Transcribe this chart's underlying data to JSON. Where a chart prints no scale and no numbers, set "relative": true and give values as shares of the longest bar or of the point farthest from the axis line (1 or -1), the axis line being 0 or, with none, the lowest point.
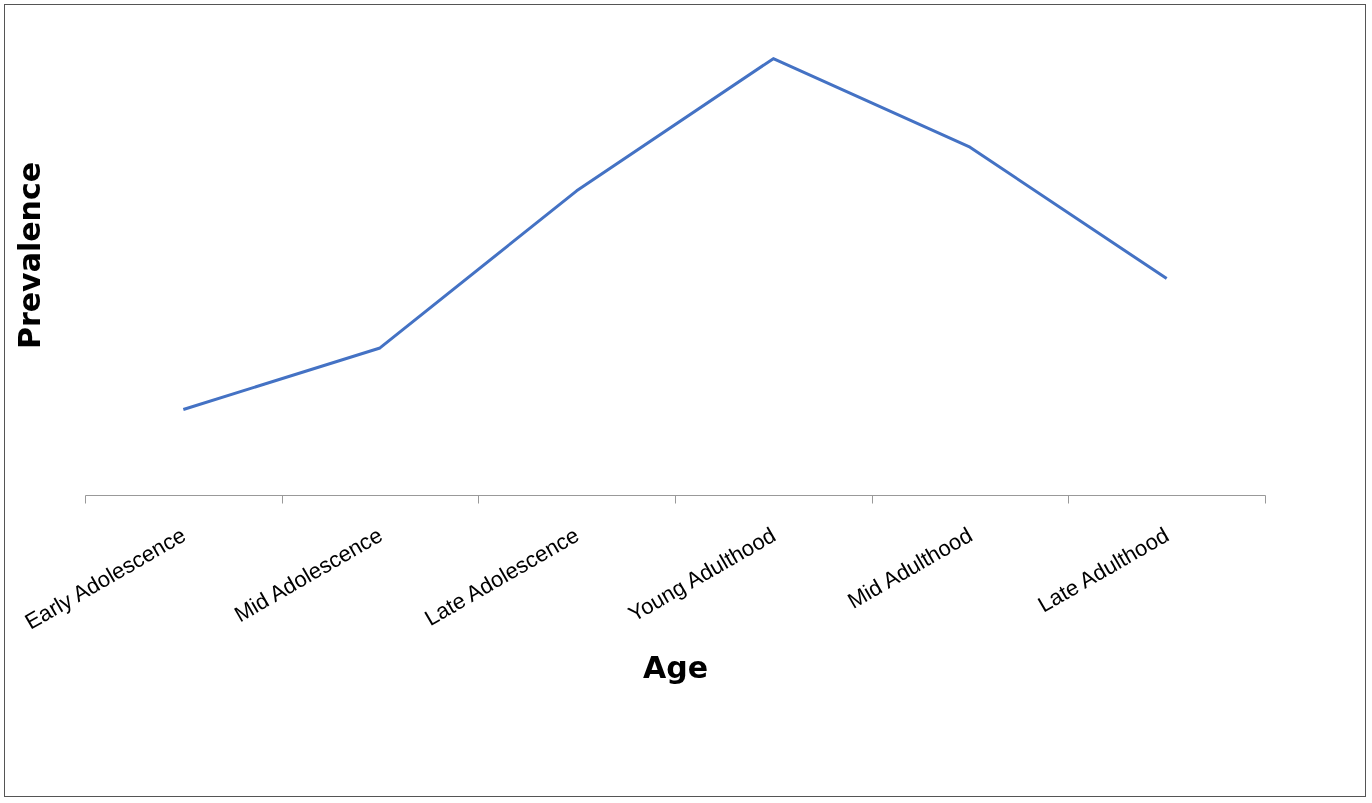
{
  "chart_data": {
    "type": "line",
    "relative": true,
    "xlabel": "Age",
    "ylabel": "Prevalence",
    "categories": [
      "Early Adolescence",
      "Mid Adolescence",
      "Late Adolescence",
      "Young Adulthood",
      "Mid Adulthood",
      "Late Adulthood"
    ],
    "series": [
      {
        "color": "#4472c4",
        "values": [
          0.196,
          0.337,
          0.697,
          1,
          0.797,
          0.496
        ]
      }
    ],
    "grid": false,
    "marker": "none",
    "line_style": "solid"
  }
}
